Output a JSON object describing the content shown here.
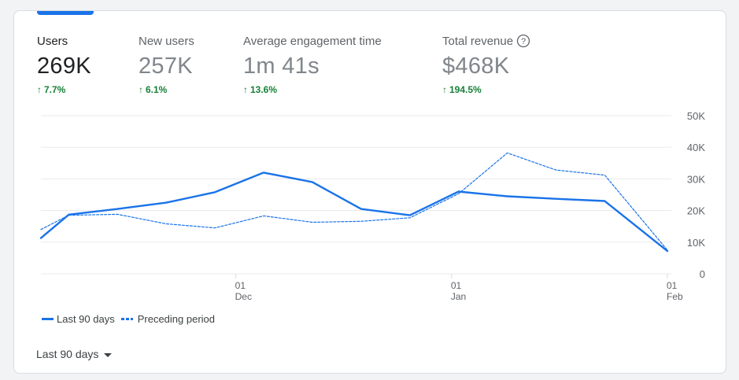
{
  "metrics": [
    {
      "label": "Users",
      "value": "269K",
      "change": "7.7%",
      "active": true
    },
    {
      "label": "New users",
      "value": "257K",
      "change": "6.1%",
      "active": false
    },
    {
      "label": "Average engagement time",
      "value": "1m 41s",
      "change": "13.6%",
      "active": false
    },
    {
      "label": "Total revenue",
      "value": "$468K",
      "change": "194.5%",
      "active": false,
      "help_icon": "help-circle-icon"
    }
  ],
  "colors": {
    "accent": "#1a73e8",
    "positive": "#188038",
    "grid": "#e8eaed",
    "text": "#202124",
    "muted": "#5f6368"
  },
  "chart_data": {
    "type": "line",
    "ylim": [
      0,
      50000
    ],
    "y_ticks": [
      {
        "value": 50000,
        "label": "50K"
      },
      {
        "value": 40000,
        "label": "40K"
      },
      {
        "value": 30000,
        "label": "30K"
      },
      {
        "value": 20000,
        "label": "20K"
      },
      {
        "value": 10000,
        "label": "10K"
      },
      {
        "value": 0,
        "label": "0"
      }
    ],
    "y_axis_side": "right",
    "grid": true,
    "x_ticks": [
      {
        "x": "2023-12-01",
        "day": "01",
        "month": "Dec"
      },
      {
        "x": "2024-01-01",
        "day": "01",
        "month": "Jan"
      },
      {
        "x": "2024-02-01",
        "day": "01",
        "month": "Feb"
      }
    ],
    "series": [
      {
        "name": "Last 90 days",
        "style": "solid",
        "points": [
          [
            "2023-11-03",
            11300
          ],
          [
            "2023-11-07",
            18700
          ],
          [
            "2023-11-14",
            20500
          ],
          [
            "2023-11-21",
            22500
          ],
          [
            "2023-11-28",
            25800
          ],
          [
            "2023-12-05",
            32000
          ],
          [
            "2023-12-12",
            29000
          ],
          [
            "2023-12-19",
            20500
          ],
          [
            "2023-12-26",
            18500
          ],
          [
            "2024-01-02",
            26000
          ],
          [
            "2024-01-09",
            24500
          ],
          [
            "2024-01-16",
            23700
          ],
          [
            "2024-01-23",
            23000
          ],
          [
            "2024-02-01",
            7200
          ]
        ]
      },
      {
        "name": "Preceding period",
        "style": "dashed",
        "points": [
          [
            "2023-11-03",
            14000
          ],
          [
            "2023-11-07",
            18500
          ],
          [
            "2023-11-14",
            18800
          ],
          [
            "2023-11-21",
            15800
          ],
          [
            "2023-11-28",
            14500
          ],
          [
            "2023-12-05",
            18300
          ],
          [
            "2023-12-12",
            16300
          ],
          [
            "2023-12-19",
            16600
          ],
          [
            "2023-12-26",
            17700
          ],
          [
            "2024-01-02",
            25300
          ],
          [
            "2024-01-09",
            38200
          ],
          [
            "2024-01-16",
            32800
          ],
          [
            "2024-01-23",
            31200
          ],
          [
            "2024-02-01",
            7500
          ]
        ]
      }
    ]
  },
  "legend": {
    "current": "Last 90 days",
    "previous": "Preceding period"
  },
  "date_range": {
    "label": "Last 90 days"
  }
}
